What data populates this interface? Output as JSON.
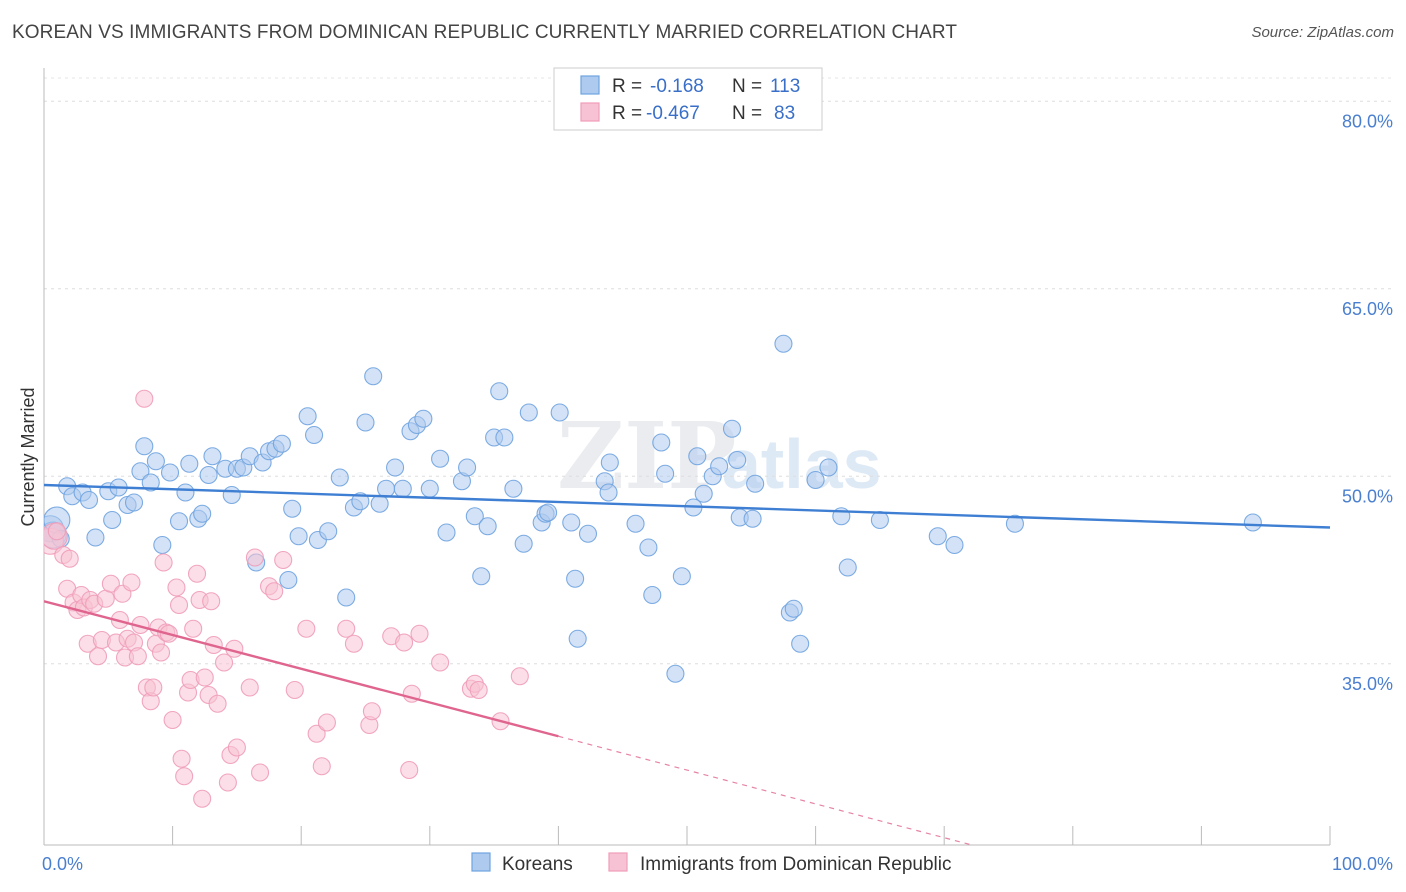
{
  "chart_data": {
    "type": "scatter",
    "title": "KOREAN VS IMMIGRANTS FROM DOMINICAN REPUBLIC CURRENTLY MARRIED CORRELATION CHART",
    "source": "Source: ZipAtlas.com",
    "watermark": "ZIPatlas",
    "xlabel": "",
    "ylabel": "Currently Married",
    "xlim": [
      0,
      100
    ],
    "ylim": [
      20.5,
      82.5
    ],
    "x_tick_labels": [
      {
        "value": 0,
        "label": "0.0%"
      },
      {
        "value": 100,
        "label": "100.0%"
      }
    ],
    "y_ticks": [
      {
        "value": 35,
        "label": "35.0%"
      },
      {
        "value": 50,
        "label": "50.0%"
      },
      {
        "value": 65,
        "label": "65.0%"
      },
      {
        "value": 80,
        "label": "80.0%"
      }
    ],
    "grid": true,
    "legend_position": "bottom-center",
    "stats": [
      {
        "r_label": "R =",
        "r_value": "-0.168",
        "n_label": "N =",
        "n_value": "113"
      },
      {
        "r_label": "R =",
        "r_value": "-0.467",
        "n_label": "N =",
        "n_value": "83"
      }
    ],
    "series": [
      {
        "name": "Koreans",
        "color": "#6fa3e0",
        "fill": "#aecbef",
        "line_color": "#3f7fd3",
        "trend": {
          "x": [
            0,
            100
          ],
          "y": [
            49.3,
            45.9
          ],
          "dashed_after": null
        },
        "points": [
          [
            0.5,
            45.8
          ],
          [
            0.7,
            45.3
          ],
          [
            1.0,
            46.5
          ],
          [
            1.3,
            45.0
          ],
          [
            1.8,
            49.2
          ],
          [
            2.2,
            48.4
          ],
          [
            3.0,
            48.7
          ],
          [
            3.5,
            48.1
          ],
          [
            4.0,
            45.1
          ],
          [
            5.0,
            48.8
          ],
          [
            5.3,
            46.5
          ],
          [
            5.8,
            49.1
          ],
          [
            6.5,
            47.7
          ],
          [
            7.0,
            47.9
          ],
          [
            7.5,
            50.4
          ],
          [
            7.8,
            52.4
          ],
          [
            8.3,
            49.5
          ],
          [
            8.7,
            51.2
          ],
          [
            9.2,
            44.5
          ],
          [
            9.8,
            50.3
          ],
          [
            10.5,
            46.4
          ],
          [
            11.0,
            48.7
          ],
          [
            11.3,
            51.0
          ],
          [
            12.0,
            46.6
          ],
          [
            12.3,
            47.0
          ],
          [
            12.8,
            50.1
          ],
          [
            13.1,
            51.6
          ],
          [
            14.1,
            50.6
          ],
          [
            14.6,
            48.5
          ],
          [
            15.0,
            50.6
          ],
          [
            15.5,
            50.7
          ],
          [
            16.0,
            51.6
          ],
          [
            16.5,
            43.1
          ],
          [
            17.0,
            51.1
          ],
          [
            17.5,
            52.0
          ],
          [
            18.0,
            52.2
          ],
          [
            18.5,
            52.6
          ],
          [
            19.0,
            41.7
          ],
          [
            19.3,
            47.4
          ],
          [
            19.8,
            45.2
          ],
          [
            20.5,
            54.8
          ],
          [
            21.0,
            53.3
          ],
          [
            21.3,
            44.9
          ],
          [
            22.1,
            45.6
          ],
          [
            23.0,
            49.9
          ],
          [
            23.5,
            40.3
          ],
          [
            24.1,
            47.5
          ],
          [
            24.6,
            48.0
          ],
          [
            25.0,
            54.3
          ],
          [
            25.6,
            58.0
          ],
          [
            26.1,
            47.8
          ],
          [
            26.6,
            49.0
          ],
          [
            27.3,
            50.7
          ],
          [
            27.9,
            49.0
          ],
          [
            28.5,
            53.6
          ],
          [
            29.0,
            54.1
          ],
          [
            29.5,
            54.6
          ],
          [
            30.0,
            49.0
          ],
          [
            30.8,
            51.4
          ],
          [
            31.3,
            45.5
          ],
          [
            32.5,
            49.6
          ],
          [
            32.9,
            50.7
          ],
          [
            33.5,
            46.8
          ],
          [
            34.0,
            42.0
          ],
          [
            34.5,
            46.0
          ],
          [
            35.0,
            53.1
          ],
          [
            35.4,
            56.8
          ],
          [
            35.8,
            53.1
          ],
          [
            36.5,
            49.0
          ],
          [
            37.3,
            44.6
          ],
          [
            37.7,
            55.1
          ],
          [
            38.7,
            46.3
          ],
          [
            39.0,
            47.0
          ],
          [
            39.2,
            47.1
          ],
          [
            40.1,
            55.1
          ],
          [
            41.0,
            46.3
          ],
          [
            41.3,
            41.8
          ],
          [
            41.5,
            37.0
          ],
          [
            42.3,
            45.4
          ],
          [
            43.6,
            49.6
          ],
          [
            43.9,
            48.7
          ],
          [
            44.0,
            51.1
          ],
          [
            46.0,
            46.2
          ],
          [
            47.0,
            44.3
          ],
          [
            47.3,
            40.5
          ],
          [
            48.0,
            52.7
          ],
          [
            48.3,
            50.2
          ],
          [
            49.1,
            34.2
          ],
          [
            49.6,
            42.0
          ],
          [
            50.5,
            47.5
          ],
          [
            50.8,
            51.6
          ],
          [
            51.3,
            48.6
          ],
          [
            52.0,
            50.0
          ],
          [
            52.5,
            50.8
          ],
          [
            53.5,
            53.8
          ],
          [
            53.9,
            51.3
          ],
          [
            54.1,
            46.7
          ],
          [
            55.1,
            46.6
          ],
          [
            55.3,
            49.4
          ],
          [
            57.5,
            60.6
          ],
          [
            58.0,
            39.1
          ],
          [
            58.3,
            39.4
          ],
          [
            58.8,
            36.6
          ],
          [
            60.0,
            49.7
          ],
          [
            61.0,
            50.7
          ],
          [
            62.0,
            46.8
          ],
          [
            62.5,
            42.7
          ],
          [
            65.0,
            46.5
          ],
          [
            69.5,
            45.2
          ],
          [
            70.8,
            44.5
          ],
          [
            75.5,
            46.2
          ],
          [
            94.0,
            46.3
          ]
        ]
      },
      {
        "name": "Immigrants from Dominican Republic",
        "color": "#f09cb8",
        "fill": "#f7c3d4",
        "line_color": "#e0658e",
        "trend": {
          "x": [
            0,
            40
          ],
          "y": [
            40.0,
            29.2
          ],
          "dashed_after": 40,
          "dash_to": [
            74,
            20.0
          ]
        },
        "points": [
          [
            0.5,
            44.8
          ],
          [
            0.8,
            45.2
          ],
          [
            1.0,
            45.6
          ],
          [
            1.5,
            43.7
          ],
          [
            1.8,
            41.0
          ],
          [
            2.0,
            43.4
          ],
          [
            2.3,
            39.9
          ],
          [
            2.6,
            39.3
          ],
          [
            2.9,
            40.5
          ],
          [
            3.1,
            39.5
          ],
          [
            3.4,
            36.6
          ],
          [
            3.6,
            40.1
          ],
          [
            3.9,
            39.8
          ],
          [
            4.2,
            35.6
          ],
          [
            4.5,
            36.9
          ],
          [
            4.8,
            40.2
          ],
          [
            5.2,
            41.4
          ],
          [
            5.6,
            36.7
          ],
          [
            5.9,
            38.5
          ],
          [
            6.1,
            40.6
          ],
          [
            6.3,
            35.5
          ],
          [
            6.5,
            37.0
          ],
          [
            6.8,
            41.5
          ],
          [
            7.0,
            36.7
          ],
          [
            7.3,
            35.6
          ],
          [
            7.5,
            38.1
          ],
          [
            7.8,
            56.2
          ],
          [
            8.0,
            33.1
          ],
          [
            8.3,
            32.0
          ],
          [
            8.5,
            33.1
          ],
          [
            8.7,
            36.6
          ],
          [
            8.9,
            37.9
          ],
          [
            9.1,
            35.9
          ],
          [
            9.3,
            43.1
          ],
          [
            9.5,
            37.5
          ],
          [
            9.7,
            37.4
          ],
          [
            10.0,
            30.5
          ],
          [
            10.3,
            41.1
          ],
          [
            10.5,
            39.7
          ],
          [
            10.7,
            27.4
          ],
          [
            10.9,
            26.0
          ],
          [
            11.2,
            32.7
          ],
          [
            11.4,
            33.7
          ],
          [
            11.6,
            37.8
          ],
          [
            11.9,
            42.2
          ],
          [
            12.1,
            40.1
          ],
          [
            12.3,
            24.2
          ],
          [
            12.5,
            33.9
          ],
          [
            12.8,
            32.5
          ],
          [
            13.0,
            40.0
          ],
          [
            13.2,
            36.5
          ],
          [
            13.5,
            31.8
          ],
          [
            14.0,
            35.1
          ],
          [
            14.3,
            25.5
          ],
          [
            14.5,
            27.7
          ],
          [
            14.8,
            36.2
          ],
          [
            15.0,
            28.3
          ],
          [
            16.0,
            33.1
          ],
          [
            16.4,
            43.5
          ],
          [
            16.8,
            26.3
          ],
          [
            17.5,
            41.2
          ],
          [
            17.9,
            40.8
          ],
          [
            18.6,
            43.3
          ],
          [
            19.5,
            32.9
          ],
          [
            20.4,
            37.8
          ],
          [
            21.2,
            29.4
          ],
          [
            21.6,
            26.8
          ],
          [
            22.0,
            30.3
          ],
          [
            23.5,
            37.8
          ],
          [
            24.1,
            36.6
          ],
          [
            25.3,
            30.1
          ],
          [
            25.5,
            31.2
          ],
          [
            27.0,
            37.2
          ],
          [
            28.0,
            36.7
          ],
          [
            28.4,
            26.5
          ],
          [
            28.6,
            32.6
          ],
          [
            29.2,
            37.4
          ],
          [
            30.8,
            35.1
          ],
          [
            33.2,
            33.0
          ],
          [
            33.5,
            33.4
          ],
          [
            33.8,
            32.9
          ],
          [
            35.5,
            30.4
          ],
          [
            37.0,
            34.0
          ]
        ]
      }
    ]
  }
}
